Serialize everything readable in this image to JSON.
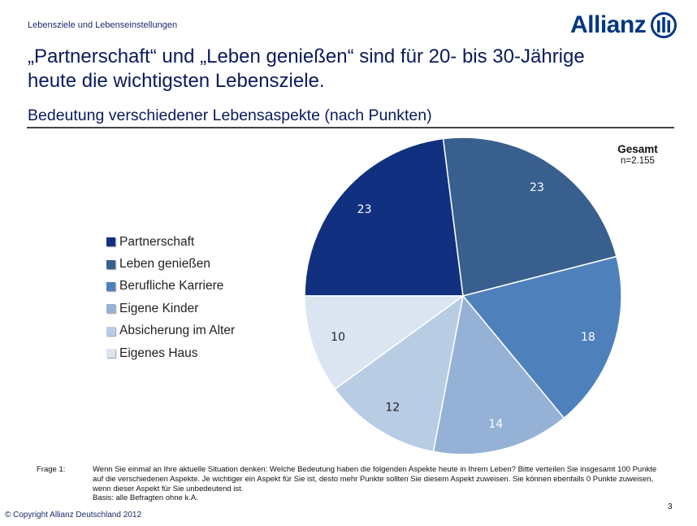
{
  "header": {
    "section": "Lebensziele und Lebenseinstellungen",
    "logo_text": "Allianz",
    "title_line1": "„Partnerschaft“ und „Leben genießen“ sind für 20- bis 30-Jährige",
    "title_line2": "heute die wichtigsten Lebensziele."
  },
  "chart_data": {
    "type": "pie",
    "title": "Bedeutung verschiedener Lebensaspekte (nach Punkten)",
    "annotation_title": "Gesamt",
    "annotation_n": "n=2.155",
    "legend_position": "left",
    "slices": [
      {
        "label": "Partnerschaft",
        "value": 23,
        "color": "#11307f"
      },
      {
        "label": "Leben genießen",
        "value": 23,
        "color": "#385f8e"
      },
      {
        "label": "Berufliche Karriere",
        "value": 18,
        "color": "#4e80bc"
      },
      {
        "label": "Eigene Kinder",
        "value": 14,
        "color": "#95b2d6"
      },
      {
        "label": "Absicherung im Alter",
        "value": 12,
        "color": "#b8cce4"
      },
      {
        "label": "Eigenes Haus",
        "value": 10,
        "color": "#dbe5f1"
      }
    ]
  },
  "footer": {
    "question_label": "Frage 1:",
    "question_text": "Wenn Sie einmal an Ihre aktuelle Situation denken: Welche Bedeutung haben die folgenden Aspekte heute in Ihrem Leben? Bitte verteilen Sie insgesamt 100 Punkte auf die verschiedenen Aspekte. Je wichtiger ein Aspekt für Sie ist, desto mehr Punkte sollten Sie diesem Aspekt zuweisen. Sie können ebenfalls 0 Punkte zuweisen, wenn dieser Aspekt für Sie unbedeutend ist.",
    "basis": "Basis: alle Befragten ohne k.A.",
    "page_number": "3",
    "copyright": "© Copyright Allianz Deutschland 2012"
  }
}
